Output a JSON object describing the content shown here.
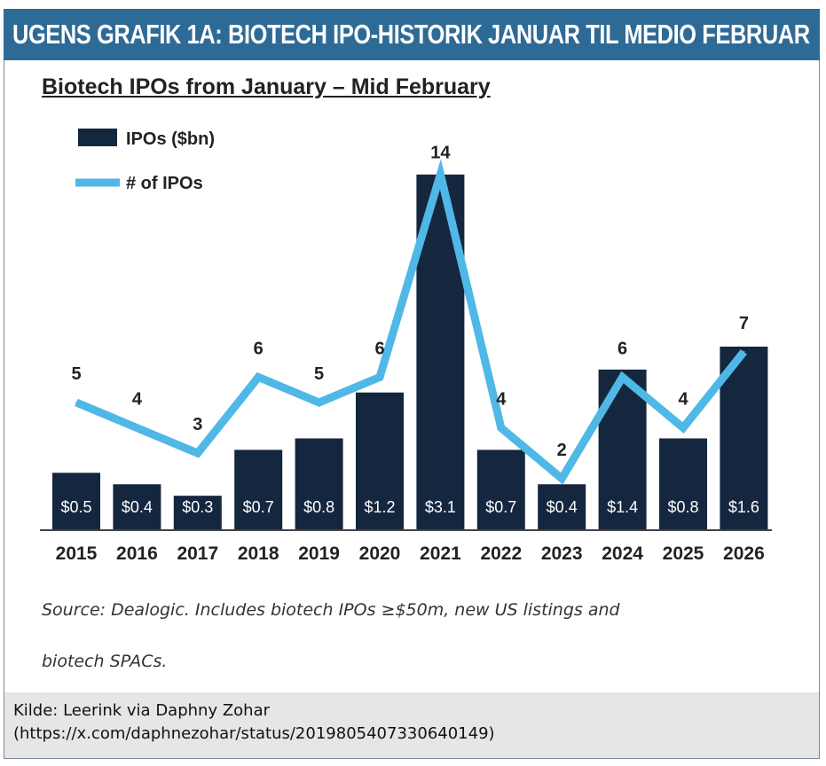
{
  "header": {
    "title": "UGENS GRAFIK 1A:  BIOTECH IPO-HISTORIK JANUAR TIL MEDIO FEBRUAR",
    "background": "#2e6a96"
  },
  "chart_data": {
    "type": "bar",
    "title": "Biotech IPOs from January – Mid February",
    "categories": [
      "2015",
      "2016",
      "2017",
      "2018",
      "2019",
      "2020",
      "2021",
      "2022",
      "2023",
      "2024",
      "2025",
      "2026"
    ],
    "series": [
      {
        "name": "IPOs ($bn)",
        "type": "bar",
        "color": "#15263f",
        "values": [
          0.5,
          0.4,
          0.3,
          0.7,
          0.8,
          1.2,
          3.1,
          0.7,
          0.4,
          1.4,
          0.8,
          1.6
        ],
        "labels": [
          "$0.5",
          "$0.4",
          "$0.3",
          "$0.7",
          "$0.8",
          "$1.2",
          "$3.1",
          "$0.7",
          "$0.4",
          "$1.4",
          "$0.8",
          "$1.6"
        ]
      },
      {
        "name": "# of IPOs",
        "type": "line",
        "color": "#4fb8e6",
        "values": [
          5,
          4,
          3,
          6,
          5,
          6,
          14,
          4,
          2,
          6,
          4,
          7
        ],
        "labels": [
          "5",
          "4",
          "3",
          "6",
          "5",
          "6",
          "14",
          "4",
          "2",
          "6",
          "4",
          "7"
        ]
      }
    ],
    "legend": "top-left",
    "grid": false
  },
  "source_note": {
    "line1": "Source: Dealogic. Includes biotech IPOs ≥$50m, new US listings and",
    "line2": "biotech SPACs."
  },
  "footer": {
    "line1": "Kilde:  Leerink via Daphny Zohar",
    "line2": "(https://x.com/daphnezohar/status/2019805407330640149)"
  }
}
